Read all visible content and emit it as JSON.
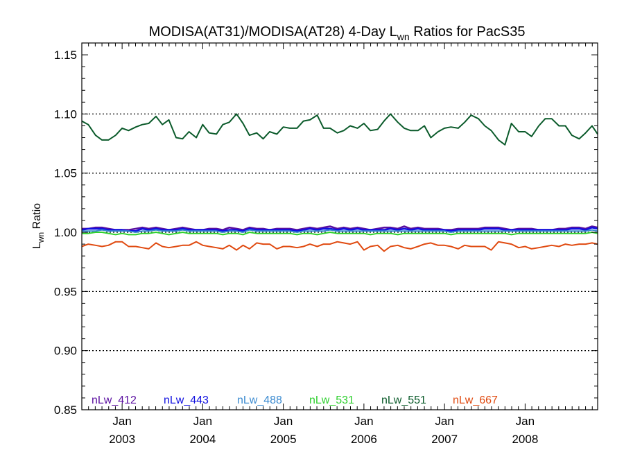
{
  "chart_data": {
    "type": "line",
    "title": "MODISA(AT31)/MODISA(AT28) 4-Day L",
    "title_sub": "wn",
    "title_suffix": " Ratios for PacS35",
    "ylabel": "L",
    "ylabel_sub": "wn",
    "ylabel_suffix": " Ratio",
    "xlim": [
      2002.5,
      2008.9
    ],
    "ylim": [
      0.85,
      1.16
    ],
    "y_ticks": [
      0.85,
      0.9,
      0.95,
      1.0,
      1.05,
      1.1,
      1.15
    ],
    "y_tick_labels": [
      "0.85",
      "0.90",
      "0.95",
      "1.00",
      "1.05",
      "1.10",
      "1.15"
    ],
    "y_gridlines": [
      0.9,
      0.95,
      1.0,
      1.05,
      1.1
    ],
    "x_ticks": [
      2003,
      2004,
      2005,
      2006,
      2007,
      2008
    ],
    "x_tick_labels": [
      {
        "month": "Jan",
        "year": "2003"
      },
      {
        "month": "Jan",
        "year": "2004"
      },
      {
        "month": "Jan",
        "year": "2005"
      },
      {
        "month": "Jan",
        "year": "2006"
      },
      {
        "month": "Jan",
        "year": "2007"
      },
      {
        "month": "Jan",
        "year": "2008"
      }
    ],
    "grid": "horizontal dotted",
    "legend_position": "bottom",
    "x": [
      2002.5,
      2002.58,
      2002.67,
      2002.75,
      2002.83,
      2002.92,
      2003.0,
      2003.08,
      2003.17,
      2003.25,
      2003.33,
      2003.42,
      2003.5,
      2003.58,
      2003.67,
      2003.75,
      2003.83,
      2003.92,
      2004.0,
      2004.08,
      2004.17,
      2004.25,
      2004.33,
      2004.42,
      2004.5,
      2004.58,
      2004.67,
      2004.75,
      2004.83,
      2004.92,
      2005.0,
      2005.08,
      2005.17,
      2005.25,
      2005.33,
      2005.42,
      2005.5,
      2005.58,
      2005.67,
      2005.75,
      2005.83,
      2005.92,
      2006.0,
      2006.08,
      2006.17,
      2006.25,
      2006.33,
      2006.42,
      2006.5,
      2006.58,
      2006.67,
      2006.75,
      2006.83,
      2006.92,
      2007.0,
      2007.08,
      2007.17,
      2007.25,
      2007.33,
      2007.42,
      2007.5,
      2007.58,
      2007.67,
      2007.75,
      2007.83,
      2007.92,
      2008.0,
      2008.08,
      2008.17,
      2008.25,
      2008.33,
      2008.42,
      2008.5,
      2008.58,
      2008.67,
      2008.75,
      2008.83,
      2008.9
    ],
    "series": [
      {
        "name": "nLw_412",
        "color": "#5a0fa0",
        "values": [
          1.003,
          1.003,
          1.004,
          1.004,
          1.003,
          1.002,
          1.002,
          1.002,
          1.003,
          1.004,
          1.003,
          1.004,
          1.003,
          1.002,
          1.003,
          1.004,
          1.003,
          1.002,
          1.002,
          1.003,
          1.003,
          1.002,
          1.004,
          1.003,
          1.002,
          1.004,
          1.003,
          1.003,
          1.002,
          1.003,
          1.003,
          1.003,
          1.002,
          1.003,
          1.004,
          1.003,
          1.004,
          1.005,
          1.003,
          1.004,
          1.003,
          1.004,
          1.003,
          1.002,
          1.003,
          1.004,
          1.004,
          1.003,
          1.005,
          1.003,
          1.004,
          1.003,
          1.003,
          1.003,
          1.002,
          1.002,
          1.003,
          1.003,
          1.003,
          1.003,
          1.004,
          1.004,
          1.004,
          1.003,
          1.002,
          1.003,
          1.003,
          1.003,
          1.002,
          1.002,
          1.002,
          1.003,
          1.003,
          1.004,
          1.004,
          1.003,
          1.005,
          1.004
        ]
      },
      {
        "name": "nLw_443",
        "color": "#1010e0",
        "values": [
          1.002,
          1.003,
          1.003,
          1.003,
          1.002,
          1.002,
          1.002,
          1.001,
          1.001,
          1.003,
          1.002,
          1.003,
          1.002,
          1.002,
          1.002,
          1.003,
          1.002,
          1.002,
          1.002,
          1.002,
          1.002,
          1.001,
          1.002,
          1.002,
          1.001,
          1.003,
          1.002,
          1.002,
          1.002,
          1.002,
          1.002,
          1.002,
          1.001,
          1.002,
          1.003,
          1.002,
          1.003,
          1.003,
          1.002,
          1.003,
          1.002,
          1.003,
          1.002,
          1.002,
          1.002,
          1.002,
          1.003,
          1.002,
          1.003,
          1.002,
          1.003,
          1.002,
          1.002,
          1.002,
          1.002,
          1.001,
          1.002,
          1.002,
          1.002,
          1.002,
          1.003,
          1.003,
          1.003,
          1.002,
          1.002,
          1.002,
          1.002,
          1.002,
          1.002,
          1.002,
          1.002,
          1.002,
          1.002,
          1.003,
          1.003,
          1.002,
          1.004,
          1.003
        ]
      },
      {
        "name": "nLw_488",
        "color": "#3a8ad0",
        "values": [
          1.001,
          1.001,
          1.001,
          1.002,
          1.001,
          1.001,
          1.001,
          1.001,
          1.0,
          1.001,
          1.001,
          1.002,
          1.001,
          1.001,
          1.001,
          1.002,
          1.001,
          1.001,
          1.001,
          1.001,
          1.001,
          1.0,
          1.001,
          1.001,
          1.0,
          1.002,
          1.001,
          1.001,
          1.001,
          1.001,
          1.001,
          1.001,
          1.0,
          1.001,
          1.001,
          1.001,
          1.001,
          1.002,
          1.001,
          1.001,
          1.001,
          1.001,
          1.001,
          1.001,
          1.001,
          1.001,
          1.001,
          1.001,
          1.001,
          1.001,
          1.001,
          1.001,
          1.001,
          1.001,
          1.001,
          1.0,
          1.001,
          1.001,
          1.001,
          1.001,
          1.001,
          1.001,
          1.001,
          1.001,
          1.001,
          1.001,
          1.001,
          1.001,
          1.001,
          1.001,
          1.001,
          1.001,
          1.001,
          1.001,
          1.001,
          1.001,
          1.002,
          1.001
        ]
      },
      {
        "name": "nLw_531",
        "color": "#2ed02e",
        "values": [
          0.999,
          0.999,
          1.0,
          1.0,
          0.999,
          0.998,
          0.999,
          0.998,
          0.998,
          0.999,
          0.999,
          1.0,
          0.999,
          0.998,
          0.999,
          1.0,
          0.999,
          0.999,
          0.999,
          0.999,
          0.999,
          0.998,
          0.999,
          0.999,
          0.998,
          1.0,
          0.999,
          0.999,
          0.999,
          0.999,
          0.999,
          0.999,
          0.998,
          0.999,
          0.999,
          0.998,
          0.999,
          1.0,
          0.999,
          0.999,
          0.999,
          0.999,
          0.999,
          0.998,
          0.999,
          0.999,
          0.999,
          0.998,
          0.999,
          0.999,
          0.999,
          0.999,
          0.999,
          0.999,
          0.999,
          0.998,
          0.999,
          0.999,
          0.999,
          0.999,
          0.999,
          0.999,
          0.999,
          0.999,
          0.998,
          0.999,
          0.999,
          0.999,
          0.999,
          0.999,
          0.999,
          0.999,
          0.999,
          0.999,
          0.999,
          0.999,
          1.0,
          0.999
        ]
      },
      {
        "name": "nLw_551",
        "color": "#0a5a2a",
        "values": [
          1.094,
          1.091,
          1.082,
          1.078,
          1.078,
          1.082,
          1.088,
          1.086,
          1.089,
          1.091,
          1.092,
          1.098,
          1.091,
          1.095,
          1.08,
          1.079,
          1.085,
          1.08,
          1.091,
          1.084,
          1.083,
          1.091,
          1.093,
          1.1,
          1.092,
          1.082,
          1.084,
          1.079,
          1.085,
          1.083,
          1.089,
          1.088,
          1.088,
          1.094,
          1.095,
          1.099,
          1.088,
          1.088,
          1.084,
          1.086,
          1.09,
          1.088,
          1.092,
          1.086,
          1.087,
          1.094,
          1.1,
          1.093,
          1.088,
          1.086,
          1.086,
          1.09,
          1.08,
          1.085,
          1.088,
          1.089,
          1.088,
          1.093,
          1.099,
          1.096,
          1.09,
          1.086,
          1.078,
          1.074,
          1.092,
          1.085,
          1.085,
          1.081,
          1.09,
          1.096,
          1.096,
          1.09,
          1.09,
          1.082,
          1.079,
          1.084,
          1.09,
          1.083
        ]
      },
      {
        "name": "nLw_667",
        "color": "#e04a10",
        "values": [
          0.988,
          0.99,
          0.989,
          0.988,
          0.989,
          0.992,
          0.992,
          0.988,
          0.988,
          0.987,
          0.986,
          0.991,
          0.988,
          0.987,
          0.988,
          0.989,
          0.989,
          0.992,
          0.989,
          0.988,
          0.987,
          0.986,
          0.989,
          0.985,
          0.989,
          0.986,
          0.991,
          0.99,
          0.99,
          0.986,
          0.988,
          0.988,
          0.987,
          0.988,
          0.99,
          0.988,
          0.99,
          0.99,
          0.992,
          0.991,
          0.99,
          0.992,
          0.985,
          0.988,
          0.989,
          0.984,
          0.988,
          0.989,
          0.987,
          0.986,
          0.988,
          0.99,
          0.991,
          0.989,
          0.989,
          0.988,
          0.986,
          0.989,
          0.988,
          0.988,
          0.988,
          0.985,
          0.992,
          0.991,
          0.99,
          0.987,
          0.988,
          0.986,
          0.987,
          0.988,
          0.989,
          0.988,
          0.99,
          0.989,
          0.99,
          0.99,
          0.991,
          0.99
        ]
      }
    ]
  }
}
